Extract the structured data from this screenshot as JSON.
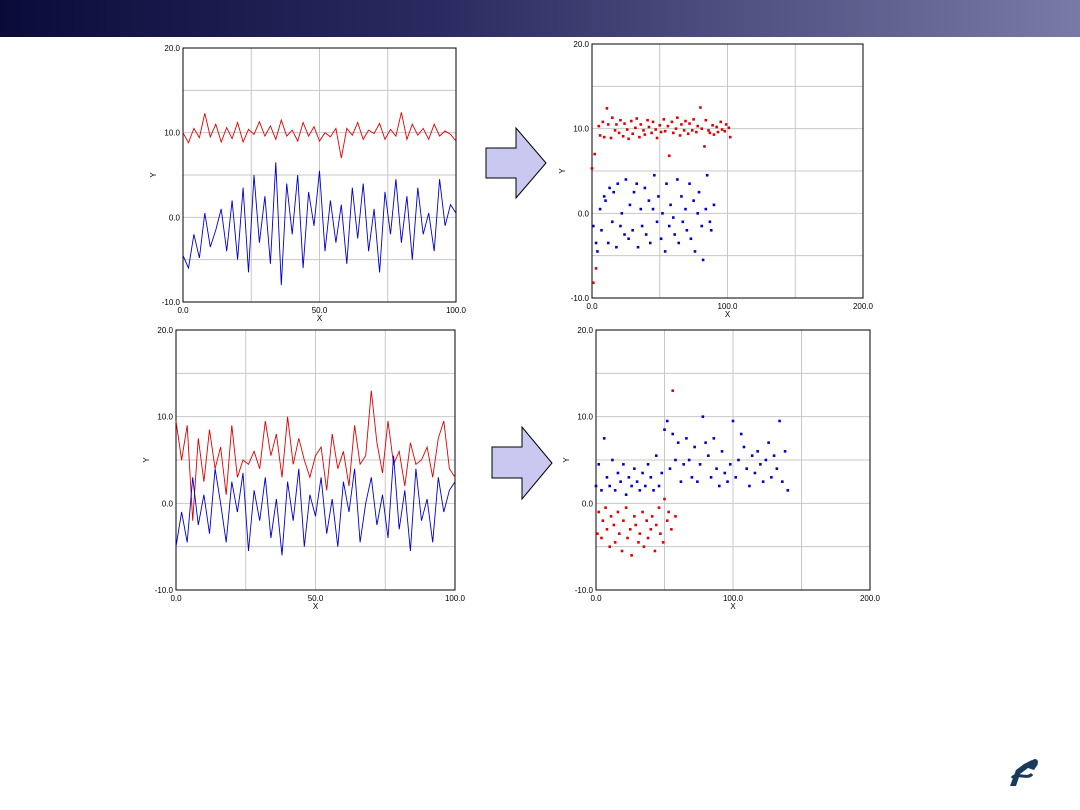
{
  "colors": {
    "red": "#e00000",
    "blue": "#0000cc",
    "grid": "#c8c8c8",
    "arrow_fill": "#c8c8f0",
    "arrow_stroke": "#000000"
  },
  "icons": {
    "logo": "robot-arm-logo-icon",
    "arrow": "right-arrow-icon"
  },
  "chart_data": [
    {
      "type": "line",
      "xlabel": "X",
      "ylabel": "Y",
      "xlim": [
        0,
        100
      ],
      "ylim": [
        -10,
        20
      ],
      "xticks": [
        "0.0",
        "50.0",
        "100.0"
      ],
      "yticks": [
        "-10.0",
        "0.0",
        "10.0",
        "20.0"
      ],
      "grid": true,
      "series": [
        {
          "color": "red",
          "x": [
            0,
            2,
            4,
            6,
            8,
            10,
            12,
            14,
            16,
            18,
            20,
            22,
            24,
            26,
            28,
            30,
            32,
            34,
            36,
            38,
            40,
            42,
            44,
            46,
            48,
            50,
            52,
            54,
            56,
            58,
            60,
            62,
            64,
            66,
            68,
            70,
            72,
            74,
            76,
            78,
            80,
            82,
            84,
            86,
            88,
            90,
            92,
            94,
            96,
            98,
            100
          ],
          "y": [
            10.0,
            8.8,
            10.5,
            9.4,
            12.3,
            9.5,
            11.0,
            8.9,
            10.6,
            9.3,
            11.2,
            8.9,
            10.4,
            9.8,
            11.3,
            9.6,
            10.8,
            9.2,
            11.5,
            9.6,
            10.3,
            9.0,
            11.2,
            9.6,
            10.7,
            9.0,
            10.0,
            9.5,
            10.5,
            7.0,
            10.5,
            9.7,
            11.2,
            9.2,
            10.3,
            9.9,
            11.1,
            9.2,
            10.4,
            9.6,
            12.4,
            9.2,
            11.0,
            9.7,
            10.5,
            9.2,
            11.0,
            9.6,
            10.2,
            9.8,
            9.0
          ]
        },
        {
          "color": "blue",
          "x": [
            0,
            2,
            4,
            6,
            8,
            10,
            12,
            14,
            16,
            18,
            20,
            22,
            24,
            26,
            28,
            30,
            32,
            34,
            36,
            38,
            40,
            42,
            44,
            46,
            48,
            50,
            52,
            54,
            56,
            58,
            60,
            62,
            64,
            66,
            68,
            70,
            72,
            74,
            76,
            78,
            80,
            82,
            84,
            86,
            88,
            90,
            92,
            94,
            96,
            98,
            100
          ],
          "y": [
            -4.5,
            -6.0,
            -2.0,
            -4.8,
            0.5,
            -3.5,
            -1.5,
            1.0,
            -4.0,
            2.0,
            -5.0,
            3.5,
            -6.5,
            5.0,
            -3.0,
            2.5,
            -5.5,
            6.5,
            -8.0,
            4.0,
            -2.0,
            5.0,
            -6.0,
            3.0,
            -1.0,
            5.5,
            -4.0,
            2.0,
            -3.0,
            1.5,
            -5.5,
            3.5,
            -2.5,
            4.0,
            -4.0,
            1.0,
            -6.5,
            3.0,
            -2.0,
            4.5,
            -3.0,
            2.5,
            -5.0,
            3.5,
            -2.0,
            0.5,
            -4.0,
            4.5,
            -1.0,
            1.5,
            0.5
          ]
        }
      ]
    },
    {
      "type": "scatter",
      "xlabel": "X",
      "ylabel": "Y",
      "xlim": [
        0,
        200
      ],
      "ylim": [
        -10,
        20
      ],
      "xticks": [
        "0.0",
        "100.0",
        "200.0"
      ],
      "yticks": [
        "-10.0",
        "0.0",
        "10.0",
        "20.0"
      ],
      "grid": true,
      "series": [
        {
          "color": "red",
          "x": [
            0,
            1,
            2,
            3,
            5,
            6,
            8,
            9,
            11,
            12,
            14,
            15,
            17,
            18,
            20,
            21,
            23,
            24,
            26,
            27,
            29,
            30,
            32,
            33,
            35,
            36,
            38,
            39,
            41,
            42,
            44,
            45,
            47,
            48,
            50,
            51,
            53,
            54,
            56,
            57,
            59,
            60,
            62,
            63,
            65,
            66,
            68,
            69,
            71,
            72,
            74,
            75,
            77,
            78,
            80,
            81,
            83,
            84,
            86,
            87,
            89,
            90,
            92,
            93,
            95,
            96,
            98,
            99,
            101,
            102
          ],
          "y": [
            5.3,
            -8.2,
            7.0,
            -6.5,
            10.3,
            9.2,
            10.8,
            9.0,
            12.4,
            10.5,
            8.9,
            11.3,
            9.8,
            10.5,
            9.5,
            11.0,
            9.1,
            10.6,
            9.9,
            8.8,
            10.9,
            9.4,
            10.1,
            11.2,
            9.0,
            10.5,
            9.8,
            9.3,
            11.0,
            10.2,
            9.5,
            10.8,
            9.9,
            8.9,
            10.4,
            9.6,
            11.1,
            9.7,
            10.3,
            6.8,
            10.8,
            9.5,
            10.0,
            11.3,
            9.2,
            10.5,
            9.8,
            10.9,
            9.4,
            10.6,
            9.8,
            11.1,
            9.6,
            10.3,
            12.5,
            10.0,
            7.9,
            11.0,
            9.8,
            9.5,
            10.4,
            9.3,
            10.2,
            9.6,
            10.8,
            9.9,
            9.7,
            10.5,
            10.1,
            9.0
          ]
        },
        {
          "color": "blue",
          "x": [
            1,
            3,
            4,
            6,
            7,
            9,
            10,
            12,
            13,
            15,
            16,
            18,
            19,
            21,
            22,
            24,
            25,
            27,
            28,
            30,
            31,
            33,
            34,
            36,
            37,
            39,
            40,
            42,
            43,
            45,
            46,
            48,
            49,
            51,
            52,
            54,
            55,
            57,
            58,
            60,
            61,
            63,
            64,
            66,
            67,
            69,
            70,
            72,
            73,
            75,
            76,
            78,
            79,
            81,
            82,
            84,
            85,
            87,
            88,
            90
          ],
          "y": [
            -1.5,
            -3.5,
            -4.5,
            0.5,
            -2.0,
            2.0,
            1.5,
            -3.5,
            3.0,
            -1.0,
            2.5,
            -4.0,
            3.5,
            -1.5,
            0.0,
            -2.5,
            4.0,
            -3.0,
            1.0,
            -2.0,
            2.5,
            3.5,
            -4.0,
            0.5,
            -1.5,
            3.0,
            -2.5,
            1.5,
            -3.5,
            0.5,
            4.5,
            -1.0,
            2.0,
            -3.0,
            0.0,
            -4.5,
            3.5,
            -1.5,
            1.0,
            -0.5,
            -2.5,
            4.0,
            -3.5,
            2.0,
            -1.0,
            0.5,
            -2.0,
            3.5,
            -3.0,
            1.5,
            -4.5,
            0.0,
            2.5,
            -1.5,
            -5.5,
            0.5,
            4.5,
            -1.0,
            -2.0,
            1.0
          ]
        }
      ]
    },
    {
      "type": "line",
      "xlabel": "X",
      "ylabel": "Y",
      "xlim": [
        0,
        100
      ],
      "ylim": [
        -10,
        20
      ],
      "xticks": [
        "0.0",
        "50.0",
        "100.0"
      ],
      "yticks": [
        "-10.0",
        "0.0",
        "10.0",
        "20.0"
      ],
      "grid": true,
      "series": [
        {
          "color": "red",
          "x": [
            0,
            2,
            4,
            6,
            8,
            10,
            12,
            14,
            16,
            18,
            20,
            22,
            24,
            26,
            28,
            30,
            32,
            34,
            36,
            38,
            40,
            42,
            44,
            46,
            48,
            50,
            52,
            54,
            56,
            58,
            60,
            62,
            64,
            66,
            68,
            70,
            72,
            74,
            76,
            78,
            80,
            82,
            84,
            86,
            88,
            90,
            92,
            94,
            96,
            98,
            100
          ],
          "y": [
            9.5,
            5.0,
            9.0,
            -2.0,
            7.5,
            2.5,
            8.5,
            4.0,
            6.5,
            1.0,
            9.0,
            3.0,
            5.0,
            4.5,
            6.0,
            4.0,
            9.5,
            5.5,
            8.0,
            3.0,
            10.0,
            4.5,
            7.5,
            5.0,
            3.0,
            5.5,
            6.5,
            1.5,
            8.0,
            4.0,
            6.0,
            2.0,
            9.0,
            4.5,
            5.5,
            13.0,
            7.0,
            3.5,
            9.5,
            4.5,
            6.0,
            2.0,
            7.0,
            4.5,
            5.0,
            6.5,
            3.0,
            7.5,
            9.5,
            4.0,
            3.0
          ]
        },
        {
          "color": "blue",
          "x": [
            0,
            2,
            4,
            6,
            8,
            10,
            12,
            14,
            16,
            18,
            20,
            22,
            24,
            26,
            28,
            30,
            32,
            34,
            36,
            38,
            40,
            42,
            44,
            46,
            48,
            50,
            52,
            54,
            56,
            58,
            60,
            62,
            64,
            66,
            68,
            70,
            72,
            74,
            76,
            78,
            80,
            82,
            84,
            86,
            88,
            90,
            92,
            94,
            96,
            98,
            100
          ],
          "y": [
            -5.0,
            -1.0,
            -4.5,
            3.0,
            -2.5,
            1.0,
            -3.5,
            4.0,
            0.0,
            -4.5,
            2.5,
            -1.0,
            3.5,
            -5.5,
            1.5,
            -2.0,
            3.0,
            -4.0,
            0.5,
            -6.0,
            2.5,
            -2.0,
            4.0,
            -5.0,
            1.0,
            -1.5,
            3.0,
            -3.5,
            0.5,
            -5.0,
            2.5,
            -1.0,
            4.0,
            -4.5,
            0.0,
            3.0,
            -2.5,
            1.0,
            -4.0,
            5.5,
            -3.0,
            1.5,
            -5.5,
            4.0,
            -2.0,
            0.5,
            -4.5,
            3.0,
            -1.0,
            1.5,
            2.5
          ]
        }
      ]
    },
    {
      "type": "scatter",
      "xlabel": "X",
      "ylabel": "Y",
      "xlim": [
        0,
        200
      ],
      "ylim": [
        -10,
        20
      ],
      "xticks": [
        "0.0",
        "100.0",
        "200.0"
      ],
      "yticks": [
        "-10.0",
        "0.0",
        "10.0",
        "20.0"
      ],
      "grid": true,
      "series": [
        {
          "color": "red",
          "x": [
            1,
            2,
            4,
            5,
            7,
            8,
            10,
            11,
            13,
            14,
            16,
            17,
            19,
            20,
            22,
            23,
            25,
            26,
            28,
            29,
            31,
            32,
            34,
            35,
            37,
            38,
            40,
            41,
            43,
            44,
            46,
            47,
            49,
            50,
            52,
            53,
            55,
            56,
            58
          ],
          "y": [
            -3.5,
            -1.0,
            -4.0,
            -2.0,
            -0.5,
            -3.0,
            -5.0,
            -1.5,
            -2.5,
            -4.5,
            -1.0,
            -3.5,
            -5.5,
            -2.0,
            -0.5,
            -4.0,
            -3.0,
            -6.0,
            -1.5,
            -2.5,
            -4.5,
            -3.5,
            -1.0,
            -5.0,
            -2.0,
            -4.0,
            -3.0,
            -1.5,
            -5.5,
            -2.5,
            -0.5,
            -3.5,
            -4.5,
            0.5,
            -2.0,
            -1.0,
            -3.0,
            13.0,
            -1.5
          ]
        },
        {
          "color": "blue",
          "x": [
            0,
            2,
            4,
            6,
            8,
            10,
            12,
            14,
            16,
            18,
            20,
            22,
            24,
            26,
            28,
            30,
            32,
            34,
            36,
            38,
            40,
            42,
            44,
            46,
            48,
            50,
            52,
            54,
            56,
            58,
            60,
            62,
            64,
            66,
            68,
            70,
            72,
            74,
            76,
            78,
            80,
            82,
            84,
            86,
            88,
            90,
            92,
            94,
            96,
            98,
            100,
            102,
            104,
            106,
            108,
            110,
            112,
            114,
            116,
            118,
            120,
            122,
            124,
            126,
            128,
            130,
            132,
            134,
            136,
            138,
            140
          ],
          "y": [
            2.0,
            4.5,
            1.5,
            7.5,
            3.0,
            2.0,
            5.0,
            1.5,
            3.5,
            2.5,
            4.5,
            1.0,
            3.0,
            2.0,
            4.0,
            2.5,
            1.5,
            3.5,
            2.0,
            4.5,
            3.0,
            1.5,
            5.5,
            2.0,
            3.5,
            8.5,
            9.5,
            4.0,
            8.0,
            5.0,
            7.0,
            2.5,
            4.5,
            7.5,
            5.0,
            3.0,
            6.5,
            2.5,
            4.5,
            10.0,
            7.0,
            5.5,
            3.0,
            7.5,
            4.0,
            2.0,
            6.0,
            3.5,
            2.5,
            4.5,
            9.5,
            3.0,
            5.0,
            8.0,
            6.5,
            4.0,
            2.0,
            5.5,
            3.5,
            6.0,
            4.5,
            2.5,
            5.0,
            7.0,
            3.0,
            5.5,
            4.0,
            9.5,
            2.5,
            6.0,
            1.5
          ]
        }
      ]
    }
  ]
}
